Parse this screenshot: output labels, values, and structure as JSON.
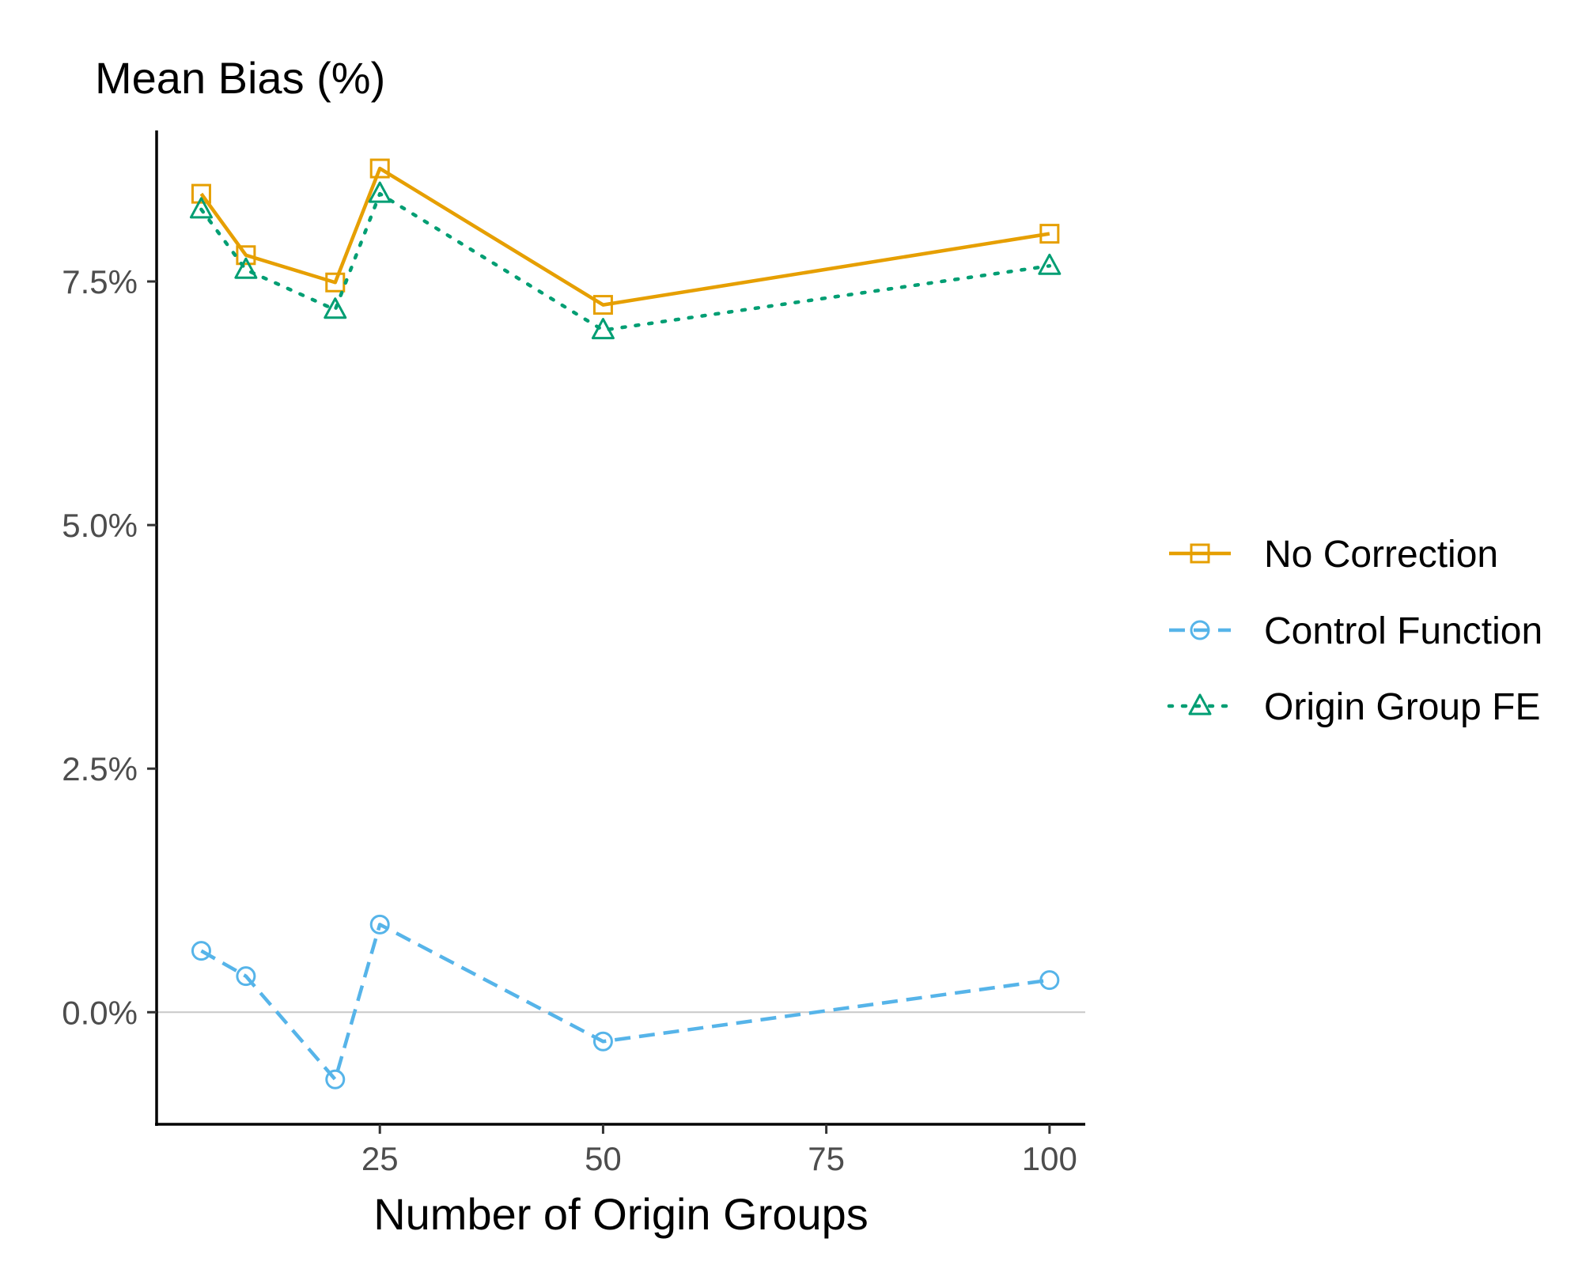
{
  "chart_data": {
    "type": "line",
    "title": "Mean Bias (%)",
    "xlabel": "Number of Origin Groups",
    "ylabel": "",
    "xlim": [
      0,
      104
    ],
    "ylim": [
      -1.15,
      9.05
    ],
    "x_ticks": [
      25,
      50,
      75,
      100
    ],
    "x_tick_labels": [
      "25",
      "50",
      "75",
      "100"
    ],
    "y_ticks": [
      0.0,
      2.5,
      5.0,
      7.5
    ],
    "y_tick_labels": [
      "0.0%",
      "2.5%",
      "5.0%",
      "7.5%"
    ],
    "reference_line_y": 0,
    "grid": false,
    "legend_position": "right",
    "x": [
      5,
      10,
      20,
      25,
      50,
      100
    ],
    "series": [
      {
        "name": "No Correction",
        "color": "#E69F00",
        "line_style": "solid",
        "marker": "square",
        "values": [
          8.4,
          7.77,
          7.49,
          8.66,
          7.26,
          7.99
        ]
      },
      {
        "name": "Control Function",
        "color": "#56B4E9",
        "line_style": "dashed",
        "marker": "circle",
        "values": [
          0.63,
          0.37,
          -0.69,
          0.9,
          -0.3,
          0.33
        ]
      },
      {
        "name": "Origin Group FE",
        "color": "#009E73",
        "line_style": "dotted",
        "marker": "triangle",
        "values": [
          8.24,
          7.62,
          7.21,
          8.4,
          7.0,
          7.66
        ]
      }
    ]
  }
}
